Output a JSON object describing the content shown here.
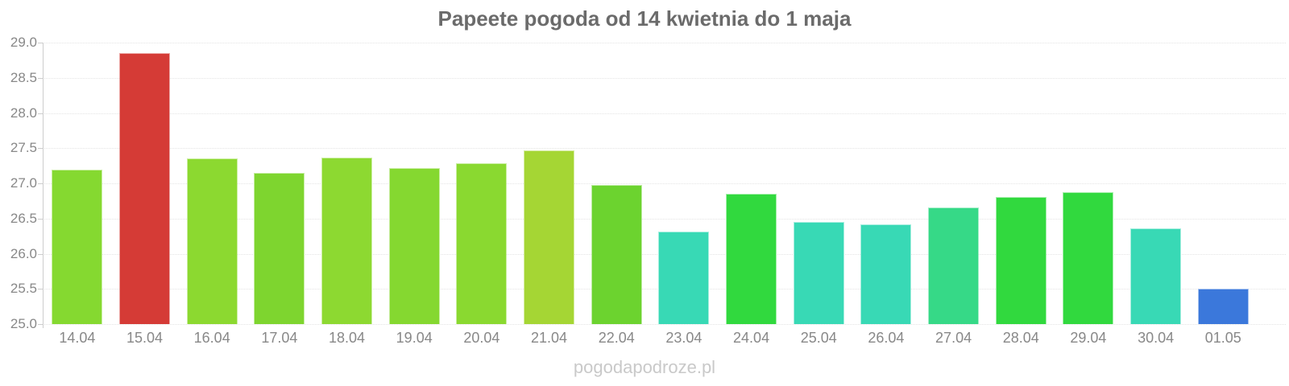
{
  "title": "Papeete pogoda od 14 kwietnia do 1 maja",
  "watermark": "pogodapodroze.pl",
  "chart_data": {
    "type": "bar",
    "title": "Papeete pogoda od 14 kwietnia do 1 maja",
    "categories": [
      "14.04",
      "15.04",
      "16.04",
      "17.04",
      "18.04",
      "19.04",
      "20.04",
      "21.04",
      "22.04",
      "23.04",
      "24.04",
      "25.04",
      "26.04",
      "27.04",
      "28.04",
      "29.04",
      "30.04",
      "01.05"
    ],
    "values": [
      27.2,
      28.85,
      27.35,
      27.15,
      27.37,
      27.22,
      27.29,
      27.47,
      26.98,
      26.32,
      26.85,
      26.45,
      26.42,
      26.66,
      26.81,
      26.87,
      26.36,
      25.5
    ],
    "bar_colors": [
      "#85D930",
      "#D53B36",
      "#8CD930",
      "#7ED52F",
      "#8DD931",
      "#85D830",
      "#8AD930",
      "#A5D634",
      "#6CD32F",
      "#38D9B5",
      "#31D93E",
      "#38D9B5",
      "#38D9B5",
      "#36D987",
      "#31D93E",
      "#31D93E",
      "#38D9B5",
      "#3B78DB"
    ],
    "xlabel": "",
    "ylabel": "",
    "ylim": [
      25.0,
      29.0
    ],
    "ytick_step": 0.5,
    "ytick_labels": [
      "25.0",
      "25.5",
      "26.0",
      "26.5",
      "27.0",
      "27.5",
      "28.0",
      "28.5",
      "29.0"
    ],
    "grid": true,
    "legend": false
  },
  "colors": {
    "title_text": "#6b6b6b",
    "axis_label_text": "#888888",
    "gridline": "#e4e4e4",
    "axis_line": "#cccccc",
    "watermark_text": "#c9c9c9",
    "background": "#ffffff"
  }
}
